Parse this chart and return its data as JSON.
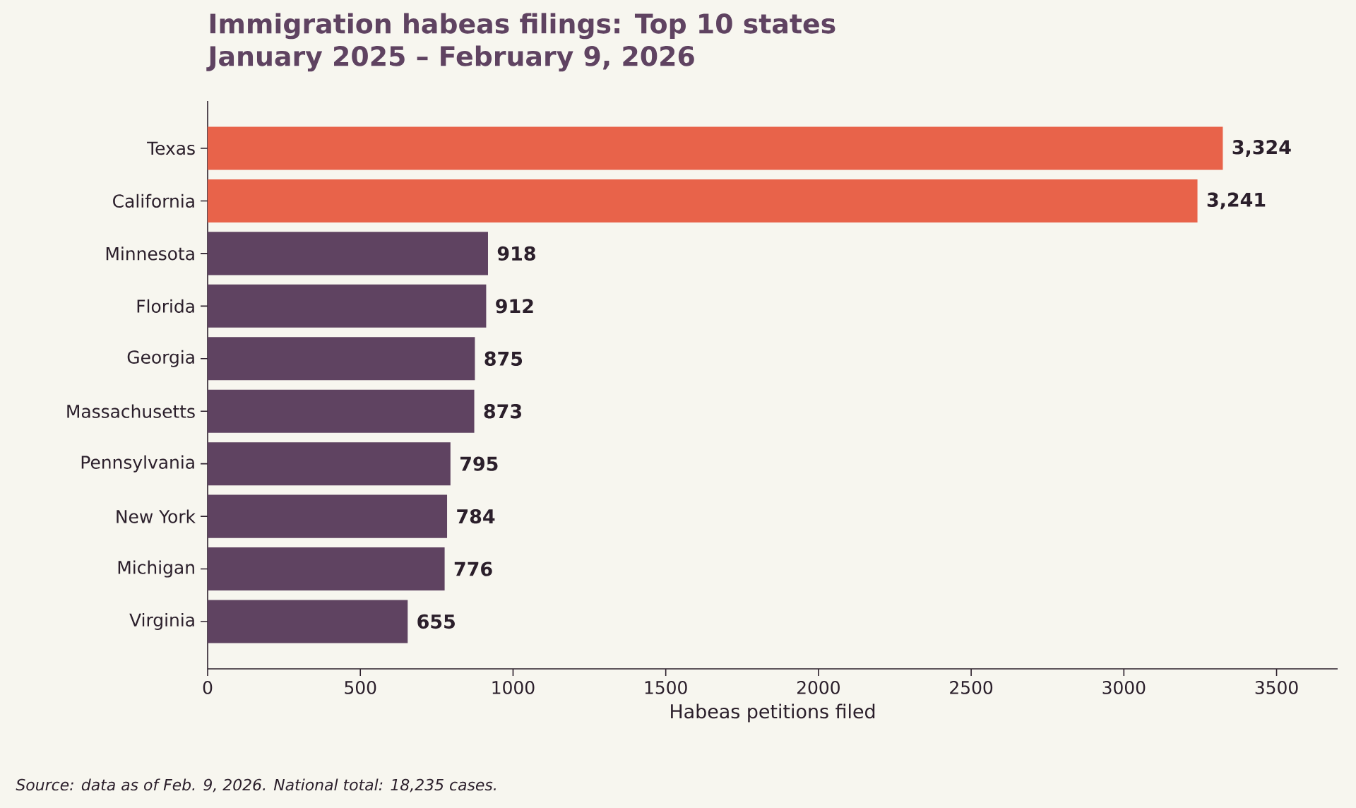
{
  "chart_data": {
    "type": "bar",
    "orientation": "horizontal",
    "title": "Immigration habeas filings: Top 10 states",
    "subtitle": "January 2025 – February 9, 2026",
    "xlabel": "Habeas petitions filed",
    "annotations": [
      "Source: data as of Feb. 9, 2026. National total: 18,235 cases."
    ],
    "categories": [
      "Texas",
      "California",
      "Minnesota",
      "Florida",
      "Georgia",
      "Massachusetts",
      "Pennsylvania",
      "New York",
      "Michigan",
      "Virginia"
    ],
    "values": [
      3324,
      3241,
      918,
      912,
      875,
      873,
      795,
      784,
      776,
      655
    ],
    "value_labels": [
      "3,324",
      "3,241",
      "918",
      "912",
      "875",
      "873",
      "795",
      "784",
      "776",
      "655"
    ],
    "colors": [
      "#e8634a",
      "#e8634a",
      "#5f4361",
      "#5f4361",
      "#5f4361",
      "#5f4361",
      "#5f4361",
      "#5f4361",
      "#5f4361",
      "#5f4361"
    ],
    "xlim": [
      0,
      3700
    ],
    "xticks": [
      0,
      500,
      1000,
      1500,
      2000,
      2500,
      3000,
      3500
    ]
  }
}
